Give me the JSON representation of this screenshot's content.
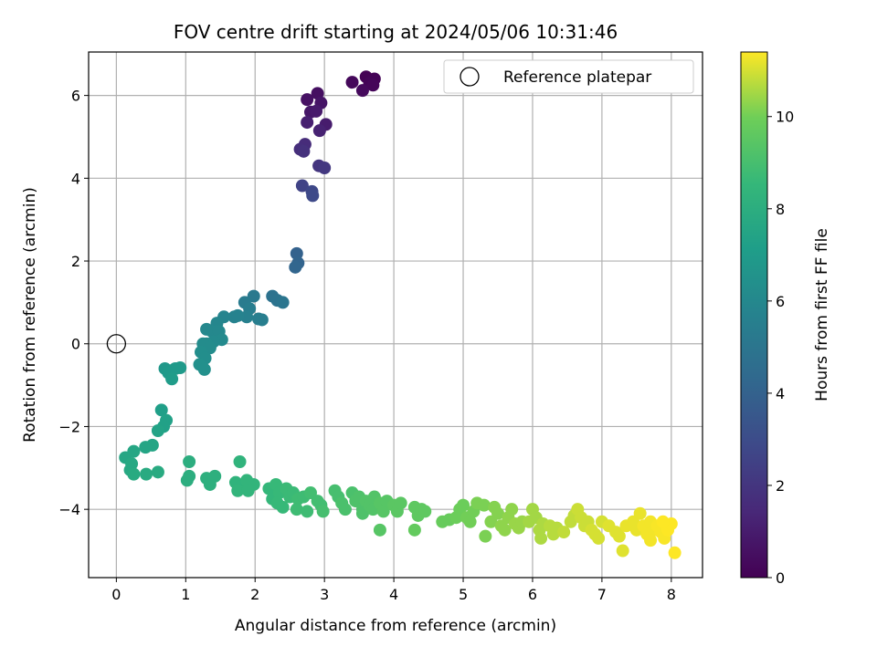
{
  "chart_data": {
    "type": "scatter",
    "title": "FOV centre drift starting at 2024/05/06 10:31:46",
    "xlabel": "Angular distance from reference (arcmin)",
    "ylabel": "Rotation from reference (arcmin)",
    "xlim": [
      -0.4,
      8.45
    ],
    "ylim": [
      -5.65,
      7.05
    ],
    "xticks": [
      0,
      1,
      2,
      3,
      4,
      5,
      6,
      7,
      8
    ],
    "yticks": [
      -4,
      -2,
      0,
      2,
      4,
      6
    ],
    "grid": true,
    "legend": {
      "placement": "top-right",
      "entries": [
        "Reference platepar"
      ]
    },
    "colormap": "viridis",
    "colorbar": {
      "label": "Hours from first FF file",
      "range": [
        0,
        11.4
      ],
      "ticks": [
        0,
        2,
        4,
        6,
        8,
        10
      ]
    },
    "reference_point": {
      "x": 0,
      "y": 0,
      "label": "Reference platepar"
    },
    "series": [
      {
        "points": [
          [
            3.6,
            6.45,
            0.0
          ],
          [
            3.72,
            6.4,
            0.06
          ],
          [
            3.65,
            6.3,
            0.12
          ],
          [
            3.7,
            6.25,
            0.18
          ],
          [
            3.4,
            6.32,
            0.25
          ],
          [
            3.55,
            6.12,
            0.3
          ],
          [
            2.9,
            6.05,
            0.5
          ],
          [
            2.75,
            5.9,
            0.6
          ],
          [
            2.95,
            5.82,
            0.7
          ],
          [
            2.8,
            5.6,
            0.8
          ],
          [
            2.88,
            5.62,
            0.9
          ],
          [
            3.02,
            5.3,
            1.0
          ],
          [
            2.75,
            5.35,
            1.1
          ],
          [
            2.93,
            5.15,
            1.2
          ],
          [
            2.72,
            4.82,
            1.6
          ],
          [
            2.65,
            4.7,
            1.7
          ],
          [
            2.7,
            4.65,
            1.8
          ],
          [
            2.92,
            4.3,
            2.0
          ],
          [
            3.0,
            4.25,
            2.1
          ],
          [
            2.68,
            3.82,
            2.6
          ],
          [
            2.82,
            3.68,
            2.8
          ],
          [
            2.83,
            3.58,
            2.9
          ],
          [
            2.6,
            2.18,
            4.0
          ],
          [
            2.62,
            1.95,
            4.1
          ],
          [
            2.58,
            1.85,
            4.2
          ],
          [
            2.25,
            1.15,
            4.8
          ],
          [
            2.32,
            1.05,
            4.9
          ],
          [
            2.4,
            1.0,
            5.0
          ],
          [
            1.98,
            1.15,
            5.2
          ],
          [
            1.85,
            1.0,
            5.3
          ],
          [
            1.92,
            0.85,
            5.4
          ],
          [
            2.05,
            0.6,
            5.5
          ],
          [
            2.1,
            0.58,
            5.5
          ],
          [
            1.88,
            0.65,
            5.6
          ],
          [
            1.7,
            0.65,
            5.7
          ],
          [
            1.75,
            0.68,
            5.7
          ],
          [
            1.55,
            0.65,
            5.8
          ],
          [
            1.45,
            0.5,
            5.9
          ],
          [
            1.38,
            0.3,
            6.0
          ],
          [
            1.3,
            0.35,
            6.0
          ],
          [
            1.48,
            0.3,
            6.0
          ],
          [
            1.52,
            0.1,
            6.1
          ],
          [
            1.4,
            0.05,
            6.1
          ],
          [
            1.3,
            0.0,
            6.2
          ],
          [
            1.25,
            0.0,
            6.2
          ],
          [
            1.35,
            -0.1,
            6.2
          ],
          [
            1.22,
            -0.2,
            6.3
          ],
          [
            1.28,
            -0.35,
            6.3
          ],
          [
            1.2,
            -0.5,
            6.4
          ],
          [
            1.27,
            -0.62,
            6.4
          ],
          [
            0.7,
            -0.6,
            6.8
          ],
          [
            0.78,
            -0.65,
            6.8
          ],
          [
            0.85,
            -0.6,
            6.9
          ],
          [
            0.92,
            -0.58,
            6.9
          ],
          [
            0.75,
            -0.7,
            6.9
          ],
          [
            0.8,
            -0.85,
            7.0
          ],
          [
            0.65,
            -1.6,
            7.2
          ],
          [
            0.72,
            -1.85,
            7.3
          ],
          [
            0.68,
            -2.0,
            7.3
          ],
          [
            0.6,
            -2.1,
            7.4
          ],
          [
            0.52,
            -2.45,
            7.5
          ],
          [
            0.42,
            -2.5,
            7.5
          ],
          [
            0.25,
            -2.6,
            7.6
          ],
          [
            0.13,
            -2.75,
            7.6
          ],
          [
            0.22,
            -2.9,
            7.7
          ],
          [
            0.2,
            -3.05,
            7.7
          ],
          [
            0.25,
            -3.15,
            7.8
          ],
          [
            0.43,
            -3.15,
            7.8
          ],
          [
            0.6,
            -3.1,
            7.8
          ],
          [
            1.05,
            -2.85,
            8.0
          ],
          [
            1.05,
            -3.2,
            8.0
          ],
          [
            1.02,
            -3.3,
            8.0
          ],
          [
            1.3,
            -3.25,
            8.1
          ],
          [
            1.42,
            -3.2,
            8.1
          ],
          [
            1.35,
            -3.4,
            8.1
          ],
          [
            1.78,
            -2.85,
            8.3
          ],
          [
            1.72,
            -3.35,
            8.3
          ],
          [
            1.8,
            -3.45,
            8.3
          ],
          [
            1.75,
            -3.55,
            8.4
          ],
          [
            1.9,
            -3.5,
            8.4
          ],
          [
            1.98,
            -3.4,
            8.4
          ],
          [
            1.88,
            -3.3,
            8.4
          ],
          [
            1.9,
            -3.55,
            8.4
          ],
          [
            2.2,
            -3.5,
            8.5
          ],
          [
            2.25,
            -3.75,
            8.5
          ],
          [
            2.3,
            -3.4,
            8.6
          ],
          [
            2.35,
            -3.6,
            8.6
          ],
          [
            2.32,
            -3.85,
            8.6
          ],
          [
            2.4,
            -3.95,
            8.6
          ],
          [
            2.45,
            -3.5,
            8.7
          ],
          [
            2.5,
            -3.7,
            8.7
          ],
          [
            2.55,
            -3.6,
            8.7
          ],
          [
            2.62,
            -3.75,
            8.8
          ],
          [
            2.7,
            -3.7,
            8.8
          ],
          [
            2.6,
            -4.0,
            8.8
          ],
          [
            2.75,
            -4.05,
            8.8
          ],
          [
            2.8,
            -3.6,
            8.9
          ],
          [
            2.9,
            -3.8,
            8.9
          ],
          [
            2.95,
            -3.9,
            8.9
          ],
          [
            2.98,
            -4.05,
            9.0
          ],
          [
            3.15,
            -3.55,
            9.0
          ],
          [
            3.2,
            -3.7,
            9.0
          ],
          [
            3.25,
            -3.85,
            9.1
          ],
          [
            3.3,
            -4.0,
            9.1
          ],
          [
            3.4,
            -3.6,
            9.1
          ],
          [
            3.45,
            -3.8,
            9.2
          ],
          [
            3.5,
            -3.7,
            9.2
          ],
          [
            3.55,
            -4.0,
            9.2
          ],
          [
            3.55,
            -4.1,
            9.2
          ],
          [
            3.6,
            -3.8,
            9.3
          ],
          [
            3.65,
            -3.9,
            9.3
          ],
          [
            3.7,
            -4.0,
            9.3
          ],
          [
            3.72,
            -3.7,
            9.3
          ],
          [
            3.8,
            -3.85,
            9.4
          ],
          [
            3.85,
            -4.05,
            9.4
          ],
          [
            3.8,
            -4.5,
            9.4
          ],
          [
            3.9,
            -3.8,
            9.4
          ],
          [
            4.0,
            -3.9,
            9.5
          ],
          [
            4.05,
            -4.05,
            9.5
          ],
          [
            4.1,
            -3.85,
            9.5
          ],
          [
            4.3,
            -3.95,
            9.6
          ],
          [
            4.35,
            -4.15,
            9.6
          ],
          [
            4.4,
            -4.0,
            9.6
          ],
          [
            4.45,
            -4.05,
            9.6
          ],
          [
            4.3,
            -4.5,
            9.7
          ],
          [
            4.7,
            -4.3,
            9.8
          ],
          [
            4.8,
            -4.25,
            9.8
          ],
          [
            4.9,
            -4.2,
            9.9
          ],
          [
            4.95,
            -4.0,
            9.9
          ],
          [
            5.0,
            -3.9,
            9.9
          ],
          [
            5.05,
            -4.2,
            10.0
          ],
          [
            5.1,
            -4.3,
            10.0
          ],
          [
            5.15,
            -4.05,
            10.0
          ],
          [
            5.2,
            -3.85,
            10.1
          ],
          [
            5.3,
            -3.9,
            10.1
          ],
          [
            5.32,
            -4.65,
            10.1
          ],
          [
            5.4,
            -4.3,
            10.2
          ],
          [
            5.45,
            -3.95,
            10.2
          ],
          [
            5.5,
            -4.1,
            10.2
          ],
          [
            5.55,
            -4.4,
            10.3
          ],
          [
            5.6,
            -4.5,
            10.3
          ],
          [
            5.65,
            -4.2,
            10.3
          ],
          [
            5.7,
            -4.0,
            10.3
          ],
          [
            5.75,
            -4.35,
            10.4
          ],
          [
            5.8,
            -4.45,
            10.4
          ],
          [
            5.85,
            -4.3,
            10.4
          ],
          [
            5.95,
            -4.3,
            10.5
          ],
          [
            6.0,
            -4.0,
            10.5
          ],
          [
            6.05,
            -4.2,
            10.5
          ],
          [
            6.1,
            -4.5,
            10.6
          ],
          [
            6.12,
            -4.7,
            10.6
          ],
          [
            6.15,
            -4.35,
            10.6
          ],
          [
            6.25,
            -4.4,
            10.7
          ],
          [
            6.3,
            -4.6,
            10.7
          ],
          [
            6.35,
            -4.45,
            10.7
          ],
          [
            6.45,
            -4.55,
            10.8
          ],
          [
            6.55,
            -4.3,
            10.8
          ],
          [
            6.6,
            -4.15,
            10.8
          ],
          [
            6.65,
            -4.0,
            10.9
          ],
          [
            6.7,
            -4.2,
            10.9
          ],
          [
            6.75,
            -4.4,
            10.9
          ],
          [
            6.8,
            -4.3,
            10.9
          ],
          [
            6.85,
            -4.5,
            11.0
          ],
          [
            6.9,
            -4.6,
            11.0
          ],
          [
            6.95,
            -4.7,
            11.0
          ],
          [
            7.0,
            -4.3,
            11.0
          ],
          [
            7.1,
            -4.4,
            11.1
          ],
          [
            7.2,
            -4.55,
            11.1
          ],
          [
            7.25,
            -4.65,
            11.1
          ],
          [
            7.3,
            -5.0,
            11.1
          ],
          [
            7.35,
            -4.4,
            11.2
          ],
          [
            7.45,
            -4.3,
            11.2
          ],
          [
            7.5,
            -4.5,
            11.2
          ],
          [
            7.55,
            -4.1,
            11.2
          ],
          [
            7.6,
            -4.4,
            11.3
          ],
          [
            7.65,
            -4.6,
            11.3
          ],
          [
            7.7,
            -4.3,
            11.3
          ],
          [
            7.75,
            -4.5,
            11.3
          ],
          [
            7.8,
            -4.4,
            11.35
          ],
          [
            7.85,
            -4.55,
            11.35
          ],
          [
            7.9,
            -4.7,
            11.35
          ],
          [
            7.95,
            -4.5,
            11.4
          ],
          [
            8.0,
            -4.35,
            11.4
          ],
          [
            8.05,
            -5.05,
            11.4
          ],
          [
            7.88,
            -4.3,
            11.4
          ],
          [
            7.7,
            -4.75,
            11.3
          ]
        ]
      }
    ]
  }
}
